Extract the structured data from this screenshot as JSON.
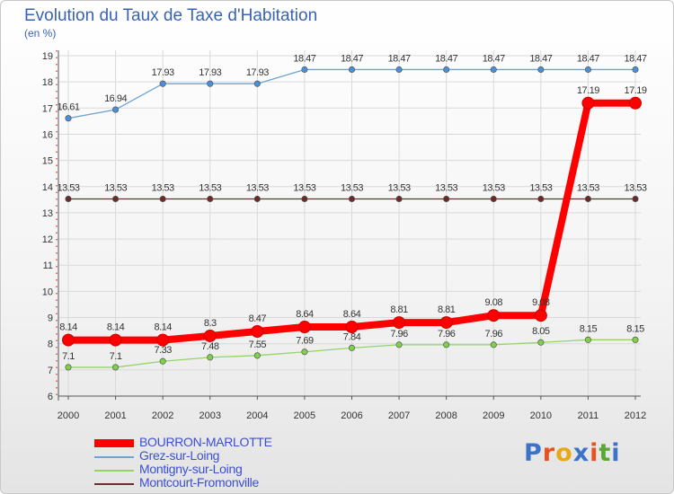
{
  "title": "Evolution du Taux de Taxe d'Habitation",
  "subtitle": "(en %)",
  "logo": {
    "text": "Proxiti",
    "colors": [
      "#3a73c9",
      "#e8521f",
      "#e9a817",
      "#3a73c9",
      "#e8521f",
      "#58a834",
      "#3a73c9"
    ]
  },
  "chart_data": {
    "type": "line",
    "title": "Evolution du Taux de Taxe d'Habitation",
    "ylabel": "(en %)",
    "xlabel": "",
    "ylim": [
      6,
      19
    ],
    "yticks": [
      6,
      7,
      8,
      9,
      10,
      11,
      12,
      13,
      14,
      15,
      16,
      17,
      18,
      19
    ],
    "categories": [
      "2000",
      "2001",
      "2002",
      "2003",
      "2004",
      "2005",
      "2006",
      "2007",
      "2008",
      "2009",
      "2010",
      "2011",
      "2012"
    ],
    "series": [
      {
        "name": "BOURRON-MARLOTTE",
        "color": "#ff0000",
        "values": [
          8.14,
          8.14,
          8.14,
          8.3,
          8.47,
          8.64,
          8.64,
          8.81,
          8.81,
          9.08,
          9.08,
          17.19,
          17.19
        ],
        "labels": [
          "8.14",
          "8.14",
          "8.14",
          "8.3",
          "8.47",
          "8.64",
          "8.64",
          "8.81",
          "8.81",
          "9.08",
          "9.08",
          "17.19",
          "17.19"
        ]
      },
      {
        "name": "Grez-sur-Loing",
        "color": "#6fa3d4",
        "values": [
          16.61,
          16.94,
          17.93,
          17.93,
          17.93,
          18.47,
          18.47,
          18.47,
          18.47,
          18.47,
          18.47,
          18.47,
          18.47
        ],
        "labels": [
          "16.61",
          "16.94",
          "17.93",
          "17.93",
          "17.93",
          "18.47",
          "18.47",
          "18.47",
          "18.47",
          "18.47",
          "18.47",
          "18.47",
          "18.47"
        ]
      },
      {
        "name": "Montigny-sur-Loing",
        "color": "#93d46a",
        "values": [
          7.1,
          7.1,
          7.33,
          7.48,
          7.55,
          7.69,
          7.84,
          7.96,
          7.96,
          7.96,
          8.05,
          8.15,
          8.15
        ],
        "labels": [
          "7.1",
          "7.1",
          "7.33",
          "7.48",
          "7.55",
          "7.69",
          "7.84",
          "7.96",
          "7.96",
          "7.96",
          "8.05",
          "8.15",
          "8.15"
        ]
      },
      {
        "name": "Montcourt-Fromonville",
        "color": "#6b2f2f",
        "values": [
          13.53,
          13.53,
          13.53,
          13.53,
          13.53,
          13.53,
          13.53,
          13.53,
          13.53,
          13.53,
          13.53,
          13.53,
          13.53
        ],
        "labels": [
          "13.53",
          "13.53",
          "13.53",
          "13.53",
          "13.53",
          "13.53",
          "13.53",
          "13.53",
          "13.53",
          "13.53",
          "13.53",
          "13.53",
          "13.53"
        ]
      }
    ]
  }
}
